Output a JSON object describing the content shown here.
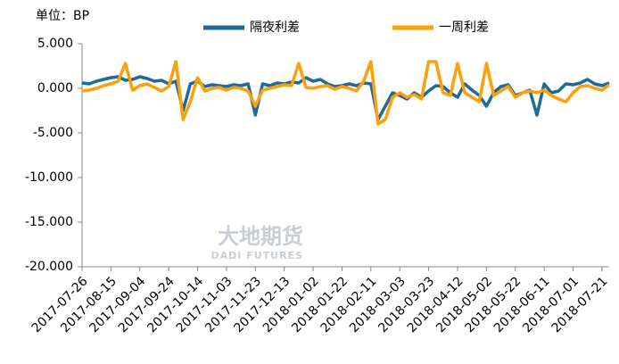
{
  "chart_data": {
    "type": "line",
    "annotation": "单位：BP",
    "watermark": {
      "cn": "大地期货",
      "en": "DADI FUTURES"
    },
    "legend": "top",
    "x": [
      "2017-07-26",
      "2017-07-31",
      "2017-08-05",
      "2017-08-10",
      "2017-08-15",
      "2017-08-20",
      "2017-08-25",
      "2017-08-30",
      "2017-09-04",
      "2017-09-09",
      "2017-09-14",
      "2017-09-19",
      "2017-09-24",
      "2017-09-29",
      "2017-10-04",
      "2017-10-09",
      "2017-10-14",
      "2017-10-19",
      "2017-10-24",
      "2017-10-29",
      "2017-11-03",
      "2017-11-08",
      "2017-11-13",
      "2017-11-18",
      "2017-11-23",
      "2017-11-28",
      "2017-12-03",
      "2017-12-08",
      "2017-12-13",
      "2017-12-18",
      "2017-12-23",
      "2017-12-28",
      "2018-01-02",
      "2018-01-07",
      "2018-01-12",
      "2018-01-17",
      "2018-01-22",
      "2018-01-27",
      "2018-02-01",
      "2018-02-06",
      "2018-02-11",
      "2018-02-16",
      "2018-02-21",
      "2018-02-26",
      "2018-03-03",
      "2018-03-08",
      "2018-03-13",
      "2018-03-18",
      "2018-03-23",
      "2018-03-28",
      "2018-04-02",
      "2018-04-07",
      "2018-04-12",
      "2018-04-17",
      "2018-04-22",
      "2018-04-27",
      "2018-05-02",
      "2018-05-07",
      "2018-05-12",
      "2018-05-17",
      "2018-05-22",
      "2018-05-27",
      "2018-06-01",
      "2018-06-06",
      "2018-06-11",
      "2018-06-16",
      "2018-06-21",
      "2018-06-26",
      "2018-07-01",
      "2018-07-06",
      "2018-07-11",
      "2018-07-16",
      "2018-07-21",
      "2018-07-26"
    ],
    "xlim": [
      "2017-07-26",
      "2018-07-26"
    ],
    "xticks": [
      "2017-07-26",
      "2017-08-15",
      "2017-09-04",
      "2017-09-24",
      "2017-10-14",
      "2017-11-03",
      "2017-11-23",
      "2017-12-13",
      "2018-01-02",
      "2018-01-22",
      "2018-02-11",
      "2018-03-03",
      "2018-03-23",
      "2018-04-12",
      "2018-05-02",
      "2018-05-22",
      "2018-06-11",
      "2018-07-01",
      "2018-07-21"
    ],
    "ylim": [
      -20,
      5
    ],
    "yticks": [
      {
        "value": -20,
        "label": "-20.000"
      },
      {
        "value": -15,
        "label": "-15.000"
      },
      {
        "value": -10,
        "label": "-10.000"
      },
      {
        "value": -5,
        "label": "-5.000"
      },
      {
        "value": 0,
        "label": "0.000"
      },
      {
        "value": 5,
        "label": "5.000"
      }
    ],
    "series": [
      {
        "name": "隔夜利差",
        "color": "#1f6a98",
        "values": [
          0.6,
          0.5,
          0.8,
          1.0,
          1.2,
          1.3,
          0.9,
          1.0,
          1.3,
          1.1,
          0.8,
          0.9,
          0.5,
          0.8,
          -2.5,
          0.5,
          0.8,
          0.2,
          0.4,
          0.3,
          0.2,
          0.4,
          0.3,
          0.5,
          -3.0,
          0.5,
          0.3,
          0.6,
          0.5,
          0.7,
          0.6,
          1.2,
          0.8,
          1.0,
          0.5,
          0.2,
          0.3,
          0.5,
          0.3,
          0.6,
          0.5,
          -3.5,
          -2.0,
          -0.5,
          -0.8,
          -1.2,
          -0.5,
          -1.0,
          -0.3,
          0.3,
          0.2,
          -0.5,
          -1.0,
          0.5,
          -0.2,
          -0.8,
          -2.0,
          -0.5,
          0.2,
          0.4,
          -0.8,
          -0.5,
          -0.2,
          -3.0,
          0.5,
          -0.5,
          -0.3,
          0.5,
          0.4,
          0.6,
          1.0,
          0.5,
          0.3,
          0.6
        ]
      },
      {
        "name": "一周利差",
        "color": "#ffa00a",
        "values": [
          -0.3,
          -0.2,
          0,
          0.3,
          0.5,
          0.8,
          2.8,
          -0.2,
          0.3,
          0.5,
          0.1,
          -0.3,
          0.2,
          3.0,
          -3.5,
          -1.5,
          1.2,
          -0.3,
          0,
          0.1,
          -0.2,
          0.1,
          0,
          -0.3,
          -2.0,
          -0.2,
          0,
          0.2,
          0.4,
          0.3,
          2.8,
          0.1,
          0,
          0.2,
          0.3,
          -0.1,
          0.2,
          0,
          -0.3,
          0.8,
          3.0,
          -4.0,
          -3.5,
          -1.0,
          -0.5,
          -1.0,
          -0.7,
          -1.2,
          3.0,
          3.0,
          -0.5,
          -0.8,
          2.8,
          -0.5,
          -1.0,
          -1.5,
          2.8,
          -0.8,
          -0.3,
          0.2,
          -1.0,
          -0.5,
          -0.3,
          -0.5,
          -0.2,
          -0.8,
          -1.2,
          -1.5,
          -0.5,
          0.2,
          0.3,
          0,
          -0.2,
          0.4
        ]
      }
    ]
  }
}
